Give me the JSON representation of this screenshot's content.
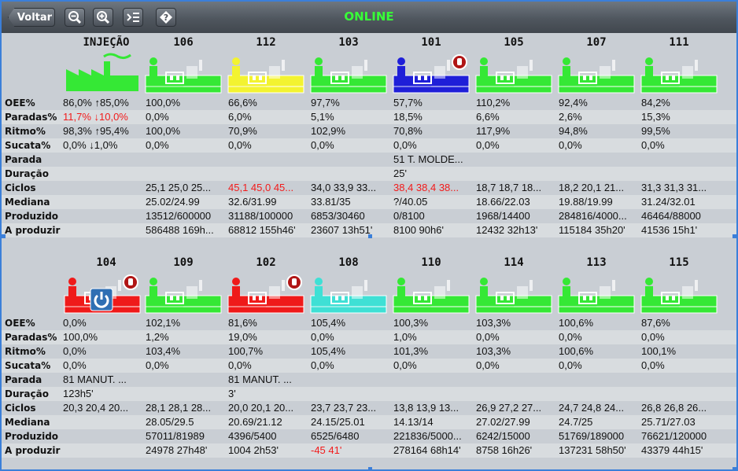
{
  "toolbar": {
    "back_label": "Voltar",
    "status": "ONLINE",
    "icons": [
      "zoom-out-icon",
      "zoom-in-icon",
      "indent-icon",
      "question-diamond-icon"
    ]
  },
  "row_labels": [
    "OEE%",
    "Paradas%",
    "Ritmo%",
    "Sucata%",
    "Parada",
    "Duração",
    "Ciclos",
    "Mediana",
    "Produzido",
    "A produzir"
  ],
  "colors": {
    "green": "#35e835",
    "yellow": "#f3f330",
    "blue": "#1f1fd8",
    "red": "#ef1a1a",
    "pink": "#f59a9a",
    "cyan": "#3fe0d5"
  },
  "panels": [
    {
      "summary": {
        "title": "INJEÇÃO",
        "values": [
          "86,0% ↑85,0%",
          "11,7% ↓10,0%",
          "98,3% ↑95,4%",
          "0,0% ↓1,0%",
          "",
          "",
          "",
          "",
          "",
          ""
        ]
      },
      "machines": [
        {
          "name": "106",
          "color": "green",
          "stop": false,
          "power": false,
          "values": [
            "100,0%",
            "0,0%",
            "100,0%",
            "0,0%",
            "",
            "",
            "25,1 25,0 25...",
            "25.02/24.99",
            "13512/600000",
            "586488 169h..."
          ]
        },
        {
          "name": "112",
          "color": "yellow",
          "stop": false,
          "power": false,
          "values": [
            "66,6%",
            "6,0%",
            "70,9%",
            "0,0%",
            "",
            "",
            "45,1 45,0 45...",
            "32.6/31.99",
            "31188/100000",
            "68812 155h46'"
          ]
        },
        {
          "name": "103",
          "color": "green",
          "stop": false,
          "power": false,
          "values": [
            "97,7%",
            "5,1%",
            "102,9%",
            "0,0%",
            "",
            "",
            "34,0 33,9 33...",
            "33.81/35",
            "6853/30460",
            "23607 13h51'"
          ]
        },
        {
          "name": "101",
          "color": "blue",
          "stop": true,
          "power": false,
          "values": [
            "57,7%",
            "18,5%",
            "70,8%",
            "0,0%",
            "51 T. MOLDE...",
            "25'",
            "38,4 38,4 38...",
            "?/40.05",
            "0/8100",
            "8100 90h6'"
          ]
        },
        {
          "name": "105",
          "color": "green",
          "stop": false,
          "power": false,
          "values": [
            "110,2%",
            "6,6%",
            "117,9%",
            "0,0%",
            "",
            "",
            "18,7 18,7 18...",
            "18.66/22.03",
            "1968/14400",
            "12432 32h13'"
          ]
        },
        {
          "name": "107",
          "color": "green",
          "stop": false,
          "power": false,
          "values": [
            "92,4%",
            "2,6%",
            "94,8%",
            "0,0%",
            "",
            "",
            "18,2 20,1 21...",
            "19.88/19.99",
            "284816/4000...",
            "115184 35h20'"
          ]
        },
        {
          "name": "111",
          "color": "green",
          "stop": false,
          "power": false,
          "values": [
            "84,2%",
            "15,3%",
            "99,5%",
            "0,0%",
            "",
            "",
            "31,3 31,3 31...",
            "31.24/32.01",
            "46464/88000",
            "41536 15h1'"
          ]
        }
      ],
      "red_cells": [
        [
          0,
          1
        ],
        [
          4,
          6
        ]
      ]
    },
    {
      "summary": {
        "title": "104",
        "values": [
          "0,0%",
          "100,0%",
          "0,0%",
          "0,0%",
          "81 MANUT. ...",
          "123h5'",
          "20,3 20,4 20...",
          "",
          "",
          ""
        ]
      },
      "machines": [
        {
          "name": "109",
          "color": "green",
          "stop": false,
          "power": false,
          "values": [
            "102,1%",
            "1,2%",
            "103,4%",
            "0,0%",
            "",
            "",
            "28,1 28,1 28...",
            "28.05/29.5",
            "57011/81989",
            "24978 27h48'"
          ]
        },
        {
          "name": "102",
          "color": "red",
          "stop": true,
          "power": false,
          "values": [
            "81,6%",
            "19,0%",
            "100,7%",
            "0,0%",
            "81 MANUT. ...",
            "3'",
            "20,0 20,1 20...",
            "20.69/21.12",
            "4396/5400",
            "1004 2h53'"
          ]
        },
        {
          "name": "108",
          "color": "cyan",
          "stop": false,
          "power": false,
          "values": [
            "105,4%",
            "0,0%",
            "105,4%",
            "0,0%",
            "",
            "",
            "23,7 23,7 23...",
            "24.15/25.01",
            "6525/6480",
            "-45 41'"
          ]
        },
        {
          "name": "110",
          "color": "green",
          "stop": false,
          "power": false,
          "values": [
            "100,3%",
            "1,0%",
            "101,3%",
            "0,0%",
            "",
            "",
            "13,8 13,9 13...",
            "14.13/14",
            "221836/5000...",
            "278164 68h14'"
          ]
        },
        {
          "name": "114",
          "color": "green",
          "stop": false,
          "power": false,
          "values": [
            "103,3%",
            "0,0%",
            "103,3%",
            "0,0%",
            "",
            "",
            "26,9 27,2 27...",
            "27.02/27.99",
            "6242/15000",
            "8758 16h26'"
          ]
        },
        {
          "name": "113",
          "color": "green",
          "stop": false,
          "power": false,
          "values": [
            "100,6%",
            "0,0%",
            "100,6%",
            "0,0%",
            "",
            "",
            "24,7 24,8 24...",
            "24.7/25",
            "51769/189000",
            "137231 58h50'"
          ]
        },
        {
          "name": "115",
          "color": "green",
          "stop": false,
          "power": false,
          "values": [
            "87,6%",
            "0,0%",
            "100,1%",
            "0,0%",
            "",
            "",
            "26,8 26,8 26...",
            "25.71/27.03",
            "76621/120000",
            "43379 44h15'"
          ]
        }
      ],
      "red_cells": [
        [
          3,
          9
        ]
      ]
    }
  ]
}
